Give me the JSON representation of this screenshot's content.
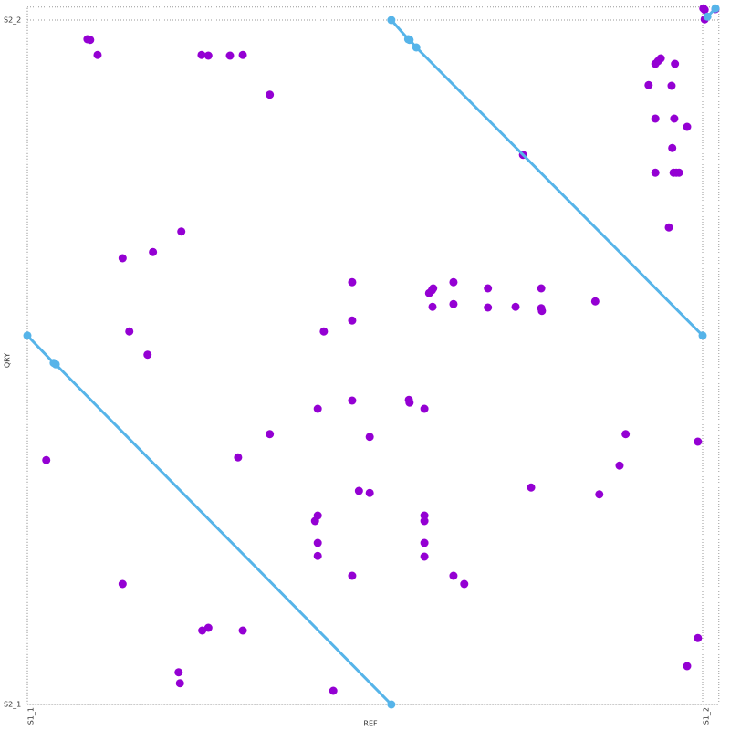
{
  "chart_data": {
    "type": "scatter",
    "x_label": "REF",
    "y_label": "QRY",
    "xlim": [
      0,
      1.024
    ],
    "ylim": [
      0,
      1.019
    ],
    "xticks": [
      {
        "value": 0,
        "label": "S1_1"
      },
      {
        "value": 1,
        "label": "S1_2"
      }
    ],
    "yticks": [
      {
        "value": 0,
        "label": "S2_1"
      },
      {
        "value": 1,
        "label": "S2_2"
      }
    ],
    "grid": true,
    "series": [
      {
        "mode": "markers",
        "color": "#9400d3",
        "x": [
          0.089,
          0.093,
          0.104,
          0.258,
          0.268,
          0.3,
          0.319,
          0.359,
          0.141,
          0.186,
          0.228,
          0.151,
          0.178,
          0.028,
          0.481,
          0.481,
          0.439,
          0.43,
          0.481,
          0.565,
          0.566,
          0.588,
          0.359,
          0.507,
          0.312,
          0.491,
          0.507,
          0.426,
          0.43,
          0.43,
          0.43,
          0.481,
          0.588,
          0.588,
          0.588,
          0.588,
          0.631,
          0.647,
          0.595,
          0.599,
          0.601,
          0.6,
          0.631,
          0.631,
          0.682,
          0.682,
          0.723,
          0.761,
          0.761,
          0.762,
          0.841,
          0.734,
          0.746,
          0.847,
          0.877,
          0.886,
          0.141,
          0.259,
          0.268,
          0.319,
          0.224,
          0.226,
          0.453,
          0.993,
          0.993,
          0.977,
          0.93,
          0.934,
          0.938,
          0.959,
          0.92,
          0.954,
          0.93,
          0.958,
          0.977,
          0.955,
          0.93,
          0.957,
          0.961,
          0.965,
          0.95,
          1.001,
          1.003,
          1.003,
          1.019
        ],
        "y": [
          0.972,
          0.971,
          0.949,
          0.949,
          0.948,
          0.948,
          0.949,
          0.891,
          0.652,
          0.661,
          0.691,
          0.545,
          0.511,
          0.357,
          0.617,
          0.561,
          0.545,
          0.432,
          0.444,
          0.445,
          0.441,
          0.432,
          0.395,
          0.391,
          0.361,
          0.312,
          0.309,
          0.268,
          0.276,
          0.236,
          0.217,
          0.188,
          0.276,
          0.268,
          0.236,
          0.216,
          0.188,
          0.176,
          0.601,
          0.605,
          0.608,
          0.581,
          0.617,
          0.585,
          0.608,
          0.58,
          0.581,
          0.608,
          0.579,
          0.575,
          0.589,
          0.803,
          0.317,
          0.307,
          0.349,
          0.395,
          0.176,
          0.108,
          0.112,
          0.108,
          0.047,
          0.031,
          0.02,
          0.384,
          0.097,
          0.056,
          0.936,
          0.94,
          0.944,
          0.936,
          0.905,
          0.904,
          0.856,
          0.856,
          0.844,
          0.813,
          0.777,
          0.777,
          0.777,
          0.777,
          0.697,
          1.017,
          1.015,
          1.001,
          1.016
        ]
      },
      {
        "mode": "lines+markers",
        "color": "#56b4e9",
        "x": [
          0,
          0.039,
          0.042,
          0.539
        ],
        "y": [
          0.539,
          0.499,
          0.497,
          0
        ]
      },
      {
        "mode": "lines+markers",
        "color": "#56b4e9",
        "x": [
          0.539,
          0.564,
          0.566,
          0.576,
          1
        ],
        "y": [
          1,
          0.972,
          0.971,
          0.96,
          0.539
        ]
      },
      {
        "mode": "lines+markers",
        "color": "#56b4e9",
        "x": [
          1.007,
          1.019
        ],
        "y": [
          1.005,
          1.017
        ]
      }
    ]
  }
}
